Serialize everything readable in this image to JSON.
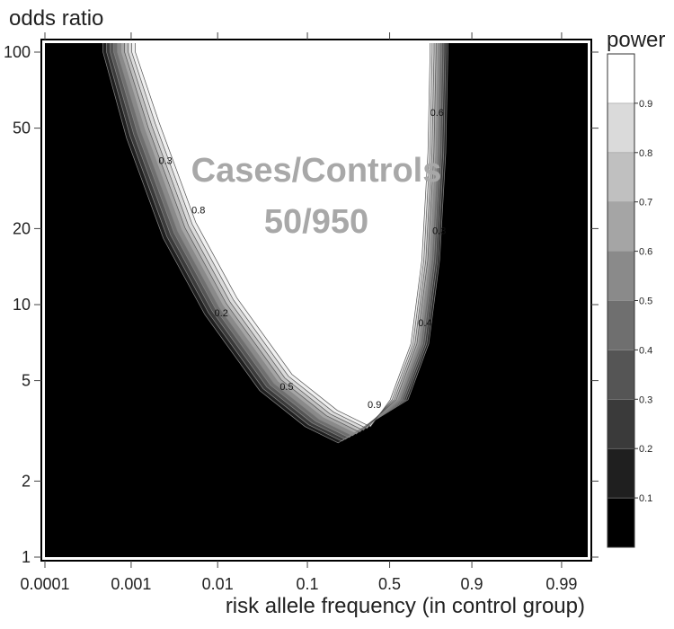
{
  "chart_data": {
    "type": "heatmap",
    "title": "",
    "xlabel": "risk allele frequency (in control group)",
    "ylabel": "odds ratio",
    "x_scale": "logit",
    "y_scale": "log",
    "xlim": [
      0.0001,
      0.995
    ],
    "ylim": [
      1,
      100
    ],
    "x_ticks": [
      {
        "value": 0.0001,
        "label": "0.0001"
      },
      {
        "value": 0.001,
        "label": "0.001"
      },
      {
        "value": 0.01,
        "label": "0.01"
      },
      {
        "value": 0.1,
        "label": "0.1"
      },
      {
        "value": 0.5,
        "label": "0.5"
      },
      {
        "value": 0.9,
        "label": "0.9"
      },
      {
        "value": 0.99,
        "label": "0.99"
      }
    ],
    "y_ticks": [
      {
        "value": 1,
        "label": "1"
      },
      {
        "value": 2,
        "label": "2"
      },
      {
        "value": 5,
        "label": "5"
      },
      {
        "value": 10,
        "label": "10"
      },
      {
        "value": 20,
        "label": "20"
      },
      {
        "value": 50,
        "label": "50"
      },
      {
        "value": 100,
        "label": "100"
      }
    ],
    "colorbar": {
      "title": "power",
      "levels": [
        0,
        0.1,
        0.2,
        0.3,
        0.4,
        0.5,
        0.6,
        0.7,
        0.8,
        0.9,
        1.0
      ],
      "labels": [
        "0.1",
        "0.2",
        "0.3",
        "0.4",
        "0.5",
        "0.6",
        "0.7",
        "0.8",
        "0.9"
      ],
      "colors": [
        "#000000",
        "#1f1f1f",
        "#3a3a3a",
        "#555555",
        "#6f6f6f",
        "#8a8a8a",
        "#a5a5a5",
        "#c0c0c0",
        "#dadada",
        "#f0f0f0",
        "#ffffff"
      ]
    },
    "power_region": {
      "description_levels": [
        0.1,
        0.2,
        0.3,
        0.4,
        0.5,
        0.6,
        0.7,
        0.8,
        0.9
      ],
      "left_boundary_or_at_power_0.5": [
        {
          "x": 0.0008,
          "y": 100
        },
        {
          "x": 0.0015,
          "y": 50
        },
        {
          "x": 0.004,
          "y": 20
        },
        {
          "x": 0.012,
          "y": 10
        },
        {
          "x": 0.05,
          "y": 5
        },
        {
          "x": 0.15,
          "y": 3.6
        },
        {
          "x": 0.3,
          "y": 3.1
        }
      ],
      "right_boundary_or_at_power_0.5": [
        {
          "x": 0.3,
          "y": 3.1
        },
        {
          "x": 0.55,
          "y": 4.2
        },
        {
          "x": 0.68,
          "y": 7
        },
        {
          "x": 0.74,
          "y": 15
        },
        {
          "x": 0.77,
          "y": 40
        },
        {
          "x": 0.78,
          "y": 100
        }
      ]
    },
    "contour_labels": [
      {
        "text": "0.3",
        "x": 0.0025,
        "y": 36
      },
      {
        "text": "0.8",
        "x": 0.006,
        "y": 23
      },
      {
        "text": "0.2",
        "x": 0.011,
        "y": 9
      },
      {
        "text": "0.5",
        "x": 0.06,
        "y": 4.6
      },
      {
        "text": "0.9",
        "x": 0.4,
        "y": 3.9
      },
      {
        "text": "0.4",
        "x": 0.72,
        "y": 8.2
      },
      {
        "text": "0.6",
        "x": 0.78,
        "y": 56
      },
      {
        "text": "0.3",
        "x": 0.79,
        "y": 19
      }
    ],
    "annotations": [
      "Cases/Controls",
      "50/950"
    ],
    "grid": false,
    "legend": "right"
  }
}
